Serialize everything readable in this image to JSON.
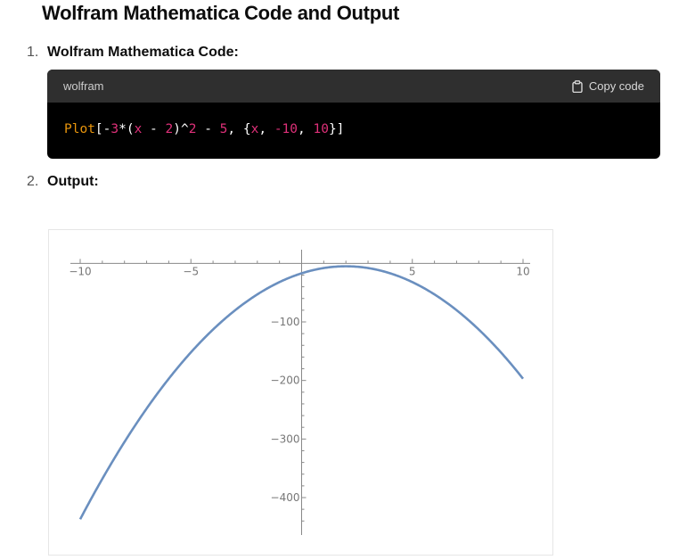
{
  "heading": "Wolfram Mathematica Code and Output",
  "steps": [
    {
      "number": "1.",
      "label": "Wolfram Mathematica Code:"
    },
    {
      "number": "2.",
      "label": "Output:"
    }
  ],
  "code_block": {
    "language": "wolfram",
    "copy_label": "Copy code",
    "tokens": [
      {
        "text": "Plot",
        "kind": "fn"
      },
      {
        "text": "[",
        "kind": "op"
      },
      {
        "text": "-",
        "kind": "op"
      },
      {
        "text": "3",
        "kind": "num"
      },
      {
        "text": "*(",
        "kind": "op"
      },
      {
        "text": "x",
        "kind": "var"
      },
      {
        "text": " - ",
        "kind": "op"
      },
      {
        "text": "2",
        "kind": "num"
      },
      {
        "text": ")^",
        "kind": "op"
      },
      {
        "text": "2",
        "kind": "num"
      },
      {
        "text": " - ",
        "kind": "op"
      },
      {
        "text": "5",
        "kind": "num"
      },
      {
        "text": ", {",
        "kind": "op"
      },
      {
        "text": "x",
        "kind": "var"
      },
      {
        "text": ", ",
        "kind": "op"
      },
      {
        "text": "-10",
        "kind": "num"
      },
      {
        "text": ", ",
        "kind": "op"
      },
      {
        "text": "10",
        "kind": "num"
      },
      {
        "text": "}]",
        "kind": "op"
      }
    ]
  },
  "chart_data": {
    "type": "line",
    "title": "",
    "xlabel": "",
    "ylabel": "",
    "function": "-3*(x - 2)^2 - 5",
    "xlim": [
      -10,
      10
    ],
    "ylim": [
      -437,
      5
    ],
    "x_ticks": [
      -10,
      -5,
      5,
      10
    ],
    "y_ticks": [
      -100,
      -200,
      -300,
      -400
    ],
    "series": [
      {
        "values_x": [
          -10,
          -8,
          -6,
          -4,
          -2,
          0,
          2,
          4,
          6,
          8,
          10
        ],
        "values_y": [
          -437,
          -305,
          -197,
          -113,
          -53,
          -17,
          -5,
          -17,
          -53,
          -113,
          -197
        ]
      }
    ],
    "grid": false,
    "line_color": "#6a8fbf"
  }
}
